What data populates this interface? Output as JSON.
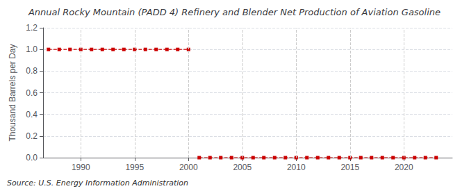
{
  "chart_data": {
    "type": "line",
    "title": "Annual Rocky Mountain (PADD 4) Refinery and Blender Net Production of Aviation Gasoline",
    "y_label": "Thousand Barrels per Day",
    "source": "Source: U.S. Energy Information Administration",
    "series": [
      {
        "color": "#cc0000",
        "marker": "square",
        "line_style": "dashed",
        "x": [
          1987,
          1988,
          1989,
          1990,
          1991,
          1992,
          1993,
          1994,
          1995,
          1996,
          1997,
          1998,
          1999,
          2000
        ],
        "values": [
          1.0,
          1.0,
          1.0,
          1.0,
          1.0,
          1.0,
          1.0,
          1.0,
          1.0,
          1.0,
          1.0,
          1.0,
          1.0,
          1.0
        ]
      },
      {
        "color": "#cc0000",
        "marker": "square",
        "line_style": "dashed",
        "x": [
          2001,
          2002,
          2003,
          2004,
          2005,
          2006,
          2007,
          2008,
          2009,
          2010,
          2011,
          2012,
          2013,
          2014,
          2015,
          2016,
          2017,
          2018,
          2019,
          2020,
          2021,
          2022,
          2023
        ],
        "values": [
          0.0,
          0.0,
          0.0,
          0.0,
          0.0,
          0.0,
          0.0,
          0.0,
          0.0,
          0.0,
          0.0,
          0.0,
          0.0,
          0.0,
          0.0,
          0.0,
          0.0,
          0.0,
          0.0,
          0.0,
          0.0,
          0.0,
          0.0
        ]
      }
    ],
    "xlim": [
      1986.5,
      2024.5
    ],
    "xticks": [
      1990,
      1995,
      2000,
      2005,
      2010,
      2015,
      2020
    ],
    "ylim": [
      0.0,
      1.2
    ],
    "yticks": [
      {
        "value": 0.0,
        "label": "0.0"
      },
      0.2,
      0.4,
      0.6,
      0.8,
      {
        "value": 1.0,
        "label": "1.0"
      },
      1.2
    ],
    "grid": true
  }
}
